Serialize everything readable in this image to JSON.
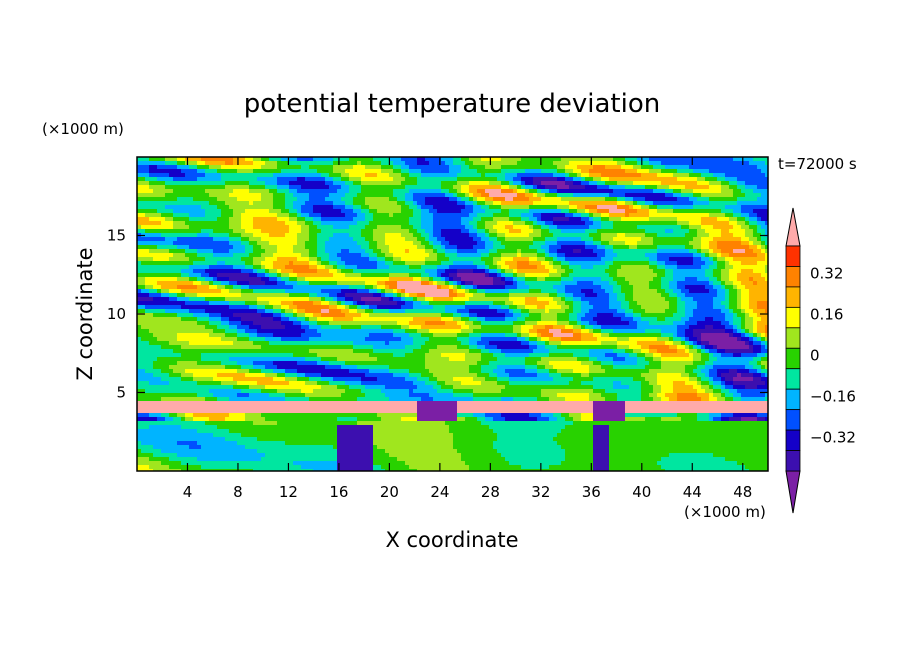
{
  "chart_data": {
    "type": "heatmap",
    "title": "potential temperature deviation",
    "xlabel": "X coordinate",
    "ylabel": "Z coordinate",
    "x_unit_label": "(×1000 m)",
    "y_unit_label": "(×1000 m)",
    "time_label": "t=72000 s",
    "xlim": [
      0,
      50
    ],
    "ylim": [
      0,
      20
    ],
    "x_ticks": [
      4,
      8,
      12,
      16,
      20,
      24,
      28,
      32,
      36,
      40,
      44,
      48
    ],
    "y_ticks": [
      5,
      10,
      15
    ],
    "colorbar": {
      "levels": [
        -0.4,
        -0.32,
        -0.24,
        -0.16,
        -0.08,
        0,
        0.08,
        0.16,
        0.24,
        0.32,
        0.4
      ],
      "labeled_values": [
        "0.32",
        "0.16",
        "0",
        "−0.16",
        "−0.32"
      ],
      "label_levels": [
        0.32,
        0.16,
        0,
        -0.16,
        -0.32
      ],
      "colors": [
        "#7b1fa5",
        "#3c0faf",
        "#1400c8",
        "#0050ff",
        "#00b4ff",
        "#00e6a0",
        "#28d200",
        "#a0e61e",
        "#ffff00",
        "#ffb400",
        "#ff8200",
        "#ff3200",
        "#ffaaaa"
      ],
      "extend": "both"
    }
  }
}
